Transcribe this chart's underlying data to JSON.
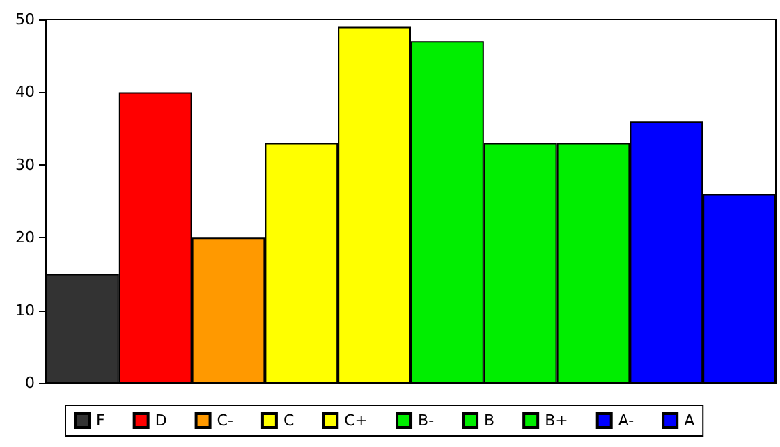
{
  "chart_data": {
    "type": "bar",
    "categories": [
      null,
      null,
      null,
      null,
      null,
      null,
      null,
      null,
      null,
      null
    ],
    "series": [
      {
        "name": "F",
        "color": "#333333",
        "values": [
          15,
          null,
          null,
          null,
          null,
          null,
          null,
          null,
          null,
          null
        ]
      },
      {
        "name": "D",
        "color": "#ff0000",
        "values": [
          null,
          40,
          null,
          null,
          null,
          null,
          null,
          null,
          null,
          null
        ]
      },
      {
        "name": "C-",
        "color": "#ff9900",
        "values": [
          null,
          null,
          20,
          null,
          null,
          null,
          null,
          null,
          null,
          null
        ]
      },
      {
        "name": "C",
        "color": "#ffff00",
        "values": [
          null,
          null,
          null,
          33,
          null,
          null,
          null,
          null,
          null,
          null
        ]
      },
      {
        "name": "C+",
        "color": "#ffff00",
        "values": [
          null,
          null,
          null,
          null,
          49,
          null,
          null,
          null,
          null,
          null
        ]
      },
      {
        "name": "B-",
        "color": "#00ee00",
        "values": [
          null,
          null,
          null,
          null,
          null,
          47,
          null,
          null,
          null,
          null
        ]
      },
      {
        "name": "B",
        "color": "#00ee00",
        "values": [
          null,
          null,
          null,
          null,
          null,
          null,
          33,
          null,
          null,
          null
        ]
      },
      {
        "name": "B+",
        "color": "#00ee00",
        "values": [
          null,
          null,
          null,
          null,
          null,
          null,
          null,
          33,
          null,
          null
        ]
      },
      {
        "name": "A-",
        "color": "#0000ff",
        "values": [
          null,
          null,
          null,
          null,
          null,
          null,
          null,
          null,
          36,
          null
        ]
      },
      {
        "name": "A",
        "color": "#0000ff",
        "values": [
          null,
          null,
          null,
          null,
          null,
          null,
          null,
          null,
          null,
          26
        ]
      }
    ],
    "ylim": [
      0,
      50
    ],
    "yticks": [
      0,
      10,
      20,
      30,
      40,
      50
    ],
    "grid": false,
    "legend": "bottom",
    "tick_labels": "y"
  }
}
